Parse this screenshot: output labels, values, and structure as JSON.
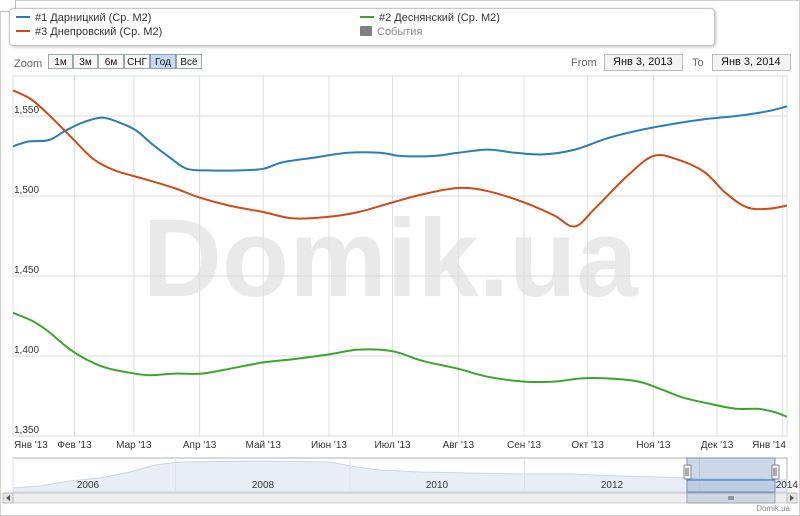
{
  "legend": {
    "series": [
      {
        "label": "#1 Дарницкий (Ср. М2)",
        "color": "#2a7db5"
      },
      {
        "label": "#2 Деснянский (Ср. М2)",
        "color": "#3aa62c"
      },
      {
        "label": "#3 Днепровский (Ср. М2)",
        "color": "#d04a17"
      }
    ],
    "events_label": "События"
  },
  "toolbar": {
    "zoom_label": "Zoom",
    "zoom_buttons": [
      "1м",
      "3м",
      "6м",
      "СНГ",
      "Год",
      "Всё"
    ],
    "active_zoom": "Год",
    "from_label": "From",
    "from_value": "Янв 3, 2013",
    "to_label": "To",
    "to_value": "Янв 3, 2014"
  },
  "watermark": "Domik.ua",
  "credit": "Domik.ua",
  "chart_data": {
    "type": "line",
    "xlabel": "",
    "ylabel": "",
    "x_tick_labels": [
      "Янв '13",
      "Фев '13",
      "Мар '13",
      "Апр '13",
      "Май '13",
      "Июн '13",
      "Июл '13",
      "Авг '13",
      "Сен '13",
      "Окт '13",
      "Ноя '13",
      "Дек '13",
      "Янв '14"
    ],
    "y_ticks": [
      "1,350",
      "1,400",
      "1,450",
      "1,500",
      "1,550"
    ],
    "ylim": [
      1350,
      1575
    ],
    "xlim": [
      "2013-01-03",
      "2014-01-03"
    ],
    "grid": true,
    "series": [
      {
        "name": "#1 Дарницкий (Ср. М2)",
        "color": "#2a7db5",
        "points": [
          [
            "2013-01-03",
            1531
          ],
          [
            "2013-01-10",
            1534
          ],
          [
            "2013-01-20",
            1535
          ],
          [
            "2013-01-28",
            1541
          ],
          [
            "2013-02-05",
            1546
          ],
          [
            "2013-02-14",
            1549
          ],
          [
            "2013-02-22",
            1546
          ],
          [
            "2013-03-02",
            1541
          ],
          [
            "2013-03-10",
            1532
          ],
          [
            "2013-03-18",
            1524
          ],
          [
            "2013-03-26",
            1517
          ],
          [
            "2013-04-05",
            1516
          ],
          [
            "2013-04-20",
            1516
          ],
          [
            "2013-05-01",
            1517
          ],
          [
            "2013-05-10",
            1521
          ],
          [
            "2013-05-25",
            1524
          ],
          [
            "2013-06-10",
            1527
          ],
          [
            "2013-06-25",
            1527
          ],
          [
            "2013-07-05",
            1525
          ],
          [
            "2013-07-20",
            1525
          ],
          [
            "2013-08-01",
            1527
          ],
          [
            "2013-08-15",
            1529
          ],
          [
            "2013-08-28",
            1527
          ],
          [
            "2013-09-10",
            1526
          ],
          [
            "2013-09-25",
            1529
          ],
          [
            "2013-10-10",
            1536
          ],
          [
            "2013-10-25",
            1541
          ],
          [
            "2013-11-10",
            1545
          ],
          [
            "2013-11-25",
            1548
          ],
          [
            "2013-12-10",
            1550
          ],
          [
            "2013-12-25",
            1553
          ],
          [
            "2014-01-03",
            1556
          ]
        ]
      },
      {
        "name": "#2 Деснянский (Ср. М2)",
        "color": "#3aa62c",
        "points": [
          [
            "2013-01-03",
            1427
          ],
          [
            "2013-01-12",
            1422
          ],
          [
            "2013-01-20",
            1415
          ],
          [
            "2013-01-28",
            1406
          ],
          [
            "2013-02-05",
            1399
          ],
          [
            "2013-02-15",
            1393
          ],
          [
            "2013-02-25",
            1390
          ],
          [
            "2013-03-08",
            1388
          ],
          [
            "2013-03-20",
            1389
          ],
          [
            "2013-04-02",
            1389
          ],
          [
            "2013-04-15",
            1392
          ],
          [
            "2013-05-01",
            1396
          ],
          [
            "2013-05-15",
            1398
          ],
          [
            "2013-06-01",
            1401
          ],
          [
            "2013-06-15",
            1404
          ],
          [
            "2013-07-01",
            1403
          ],
          [
            "2013-07-15",
            1397
          ],
          [
            "2013-08-01",
            1392
          ],
          [
            "2013-08-15",
            1387
          ],
          [
            "2013-09-01",
            1384
          ],
          [
            "2013-09-15",
            1384
          ],
          [
            "2013-09-28",
            1386
          ],
          [
            "2013-10-10",
            1386
          ],
          [
            "2013-10-25",
            1384
          ],
          [
            "2013-11-05",
            1379
          ],
          [
            "2013-11-15",
            1374
          ],
          [
            "2013-11-28",
            1370
          ],
          [
            "2013-12-10",
            1367
          ],
          [
            "2013-12-20",
            1367
          ],
          [
            "2013-12-28",
            1365
          ],
          [
            "2014-01-03",
            1362
          ]
        ]
      },
      {
        "name": "#3 Днепровский (Ср. М2)",
        "color": "#d04a17",
        "points": [
          [
            "2013-01-03",
            1566
          ],
          [
            "2013-01-12",
            1560
          ],
          [
            "2013-01-22",
            1548
          ],
          [
            "2013-01-31",
            1536
          ],
          [
            "2013-02-10",
            1523
          ],
          [
            "2013-02-20",
            1516
          ],
          [
            "2013-03-05",
            1511
          ],
          [
            "2013-03-20",
            1505
          ],
          [
            "2013-04-01",
            1499
          ],
          [
            "2013-04-15",
            1494
          ],
          [
            "2013-05-01",
            1490
          ],
          [
            "2013-05-15",
            1486
          ],
          [
            "2013-06-01",
            1487
          ],
          [
            "2013-06-15",
            1490
          ],
          [
            "2013-07-01",
            1496
          ],
          [
            "2013-07-15",
            1501
          ],
          [
            "2013-08-01",
            1505
          ],
          [
            "2013-08-15",
            1503
          ],
          [
            "2013-09-01",
            1496
          ],
          [
            "2013-09-15",
            1488
          ],
          [
            "2013-09-25",
            1481
          ],
          [
            "2013-10-05",
            1493
          ],
          [
            "2013-10-20",
            1513
          ],
          [
            "2013-11-01",
            1525
          ],
          [
            "2013-11-12",
            1523
          ],
          [
            "2013-11-25",
            1515
          ],
          [
            "2013-12-05",
            1502
          ],
          [
            "2013-12-15",
            1493
          ],
          [
            "2013-12-25",
            1492
          ],
          [
            "2014-01-03",
            1494
          ]
        ]
      }
    ],
    "navigator": {
      "x_labels": [
        "2006",
        "2008",
        "2010",
        "2012",
        "2014"
      ]
    }
  }
}
